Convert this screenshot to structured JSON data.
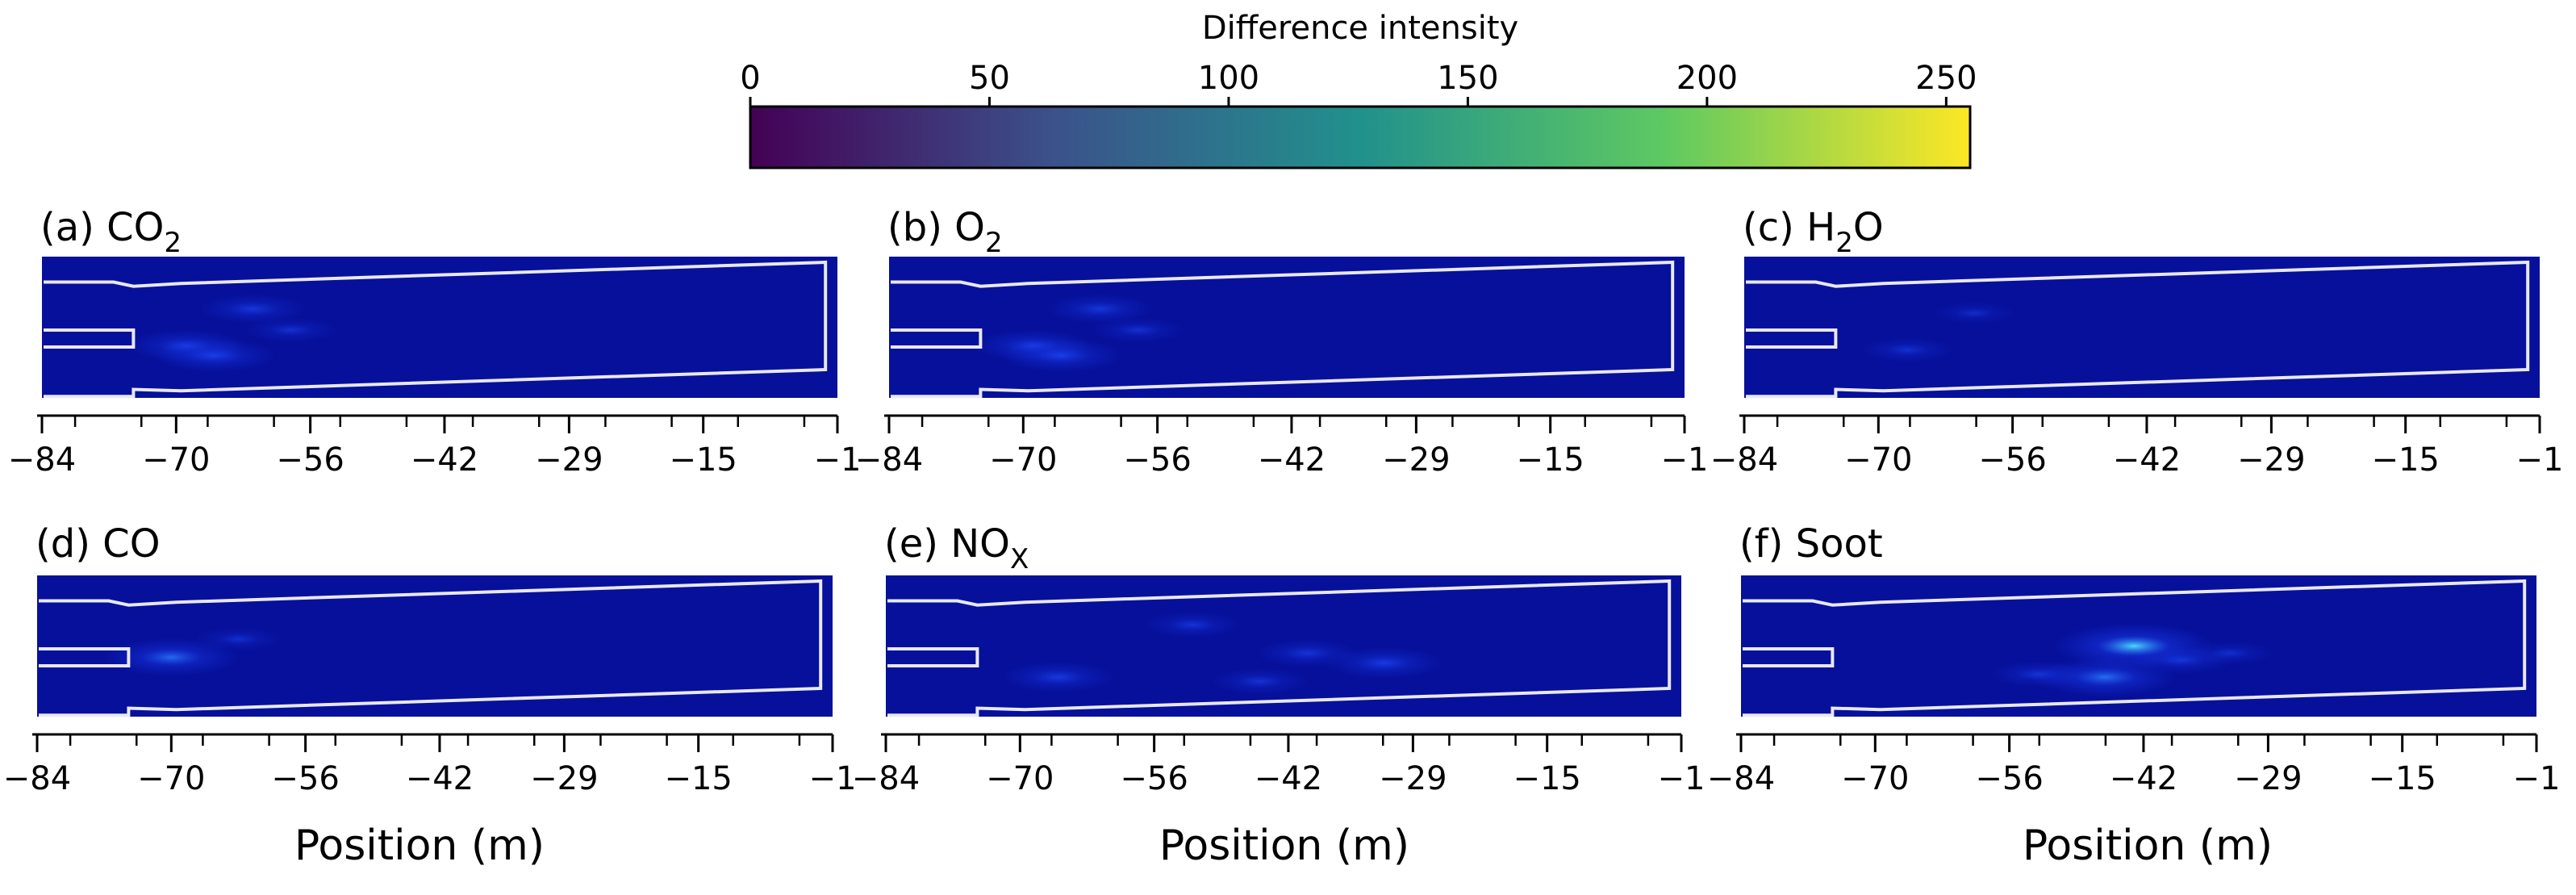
{
  "colorbar": {
    "title": "Difference intensity",
    "ticks": [
      "0",
      "50",
      "100",
      "150",
      "200",
      "250"
    ],
    "tick_values": [
      0,
      50,
      100,
      150,
      200,
      250
    ],
    "range": [
      0,
      255
    ],
    "colormap": "viridis",
    "stops": [
      "#440154",
      "#3b528b",
      "#21918c",
      "#5ec962",
      "#fde725"
    ]
  },
  "heatmap_base_color": "#06109a",
  "outline_color": "#e8e8f4",
  "chart_data": [
    {
      "type": "heatmap",
      "id": "a",
      "label_prefix": "(a) CO",
      "label_sub": "2",
      "label_suffix": "",
      "xlabel": "Position (m)",
      "xlim": [
        -84,
        -1
      ],
      "xticks": [
        "−84",
        "−70",
        "−56",
        "−42",
        "−29",
        "−15",
        "−1"
      ],
      "xtick_values": [
        -84,
        -70,
        -56,
        -42,
        -29,
        -15,
        -1
      ],
      "hotspots": [
        {
          "x": -62,
          "y": 0.37,
          "intensity": 0.45
        },
        {
          "x": -69,
          "y": 0.63,
          "intensity": 0.55
        },
        {
          "x": -66,
          "y": 0.7,
          "intensity": 0.6
        },
        {
          "x": -58,
          "y": 0.52,
          "intensity": 0.3
        }
      ]
    },
    {
      "type": "heatmap",
      "id": "b",
      "label_prefix": "(b) O",
      "label_sub": "2",
      "label_suffix": "",
      "xlabel": "Position (m)",
      "xlim": [
        -84,
        -1
      ],
      "xticks": [
        "−84",
        "−70",
        "−56",
        "−42",
        "−29",
        "−15",
        "−1"
      ],
      "xtick_values": [
        -84,
        -70,
        -56,
        -42,
        -29,
        -15,
        -1
      ],
      "hotspots": [
        {
          "x": -62,
          "y": 0.37,
          "intensity": 0.45
        },
        {
          "x": -69,
          "y": 0.63,
          "intensity": 0.55
        },
        {
          "x": -66,
          "y": 0.7,
          "intensity": 0.6
        },
        {
          "x": -58,
          "y": 0.52,
          "intensity": 0.3
        }
      ]
    },
    {
      "type": "heatmap",
      "id": "c",
      "label_prefix": "(c) H",
      "label_sub": "2",
      "label_suffix": "O",
      "xlabel": "Position (m)",
      "xlim": [
        -84,
        -1
      ],
      "xticks": [
        "−84",
        "−70",
        "−56",
        "−42",
        "−29",
        "−15",
        "−1"
      ],
      "xtick_values": [
        -84,
        -70,
        -56,
        -42,
        -29,
        -15,
        -1
      ],
      "hotspots": [
        {
          "x": -67,
          "y": 0.66,
          "intensity": 0.3
        },
        {
          "x": -60,
          "y": 0.4,
          "intensity": 0.2
        }
      ]
    },
    {
      "type": "heatmap",
      "id": "d",
      "label_prefix": "(d) CO",
      "label_sub": "",
      "label_suffix": "",
      "xlabel": "Position (m)",
      "xlim": [
        -84,
        -1
      ],
      "xticks": [
        "−84",
        "−70",
        "−56",
        "−42",
        "−29",
        "−15",
        "−1"
      ],
      "xtick_values": [
        -84,
        -70,
        -56,
        -42,
        -29,
        -15,
        -1
      ],
      "hotspots": [
        {
          "x": -70,
          "y": 0.58,
          "intensity": 0.75
        },
        {
          "x": -63,
          "y": 0.45,
          "intensity": 0.25
        }
      ]
    },
    {
      "type": "heatmap",
      "id": "e",
      "label_prefix": "(e) NO",
      "label_sub": "X",
      "label_suffix": "",
      "xlabel": "Position (m)",
      "xlim": [
        -84,
        -1
      ],
      "xticks": [
        "−84",
        "−70",
        "−56",
        "−42",
        "−29",
        "−15",
        "−1"
      ],
      "xtick_values": [
        -84,
        -70,
        -56,
        -42,
        -29,
        -15,
        -1
      ],
      "hotspots": [
        {
          "x": -66,
          "y": 0.72,
          "intensity": 0.5
        },
        {
          "x": -52,
          "y": 0.35,
          "intensity": 0.35
        },
        {
          "x": -40,
          "y": 0.55,
          "intensity": 0.4
        },
        {
          "x": -32,
          "y": 0.62,
          "intensity": 0.55
        },
        {
          "x": -45,
          "y": 0.75,
          "intensity": 0.35
        }
      ]
    },
    {
      "type": "heatmap",
      "id": "f",
      "label_prefix": "(f) Soot",
      "label_sub": "",
      "label_suffix": "",
      "xlabel": "Position (m)",
      "xlim": [
        -84,
        -1
      ],
      "xticks": [
        "−84",
        "−70",
        "−56",
        "−42",
        "−29",
        "−15",
        "−1"
      ],
      "xtick_values": [
        -84,
        -70,
        -56,
        -42,
        -29,
        -15,
        -1
      ],
      "hotspots": [
        {
          "x": -43,
          "y": 0.5,
          "intensity": 1.0
        },
        {
          "x": -46,
          "y": 0.72,
          "intensity": 0.8
        },
        {
          "x": -38,
          "y": 0.6,
          "intensity": 0.4
        },
        {
          "x": -53,
          "y": 0.7,
          "intensity": 0.35
        },
        {
          "x": -33,
          "y": 0.55,
          "intensity": 0.25
        }
      ]
    }
  ]
}
